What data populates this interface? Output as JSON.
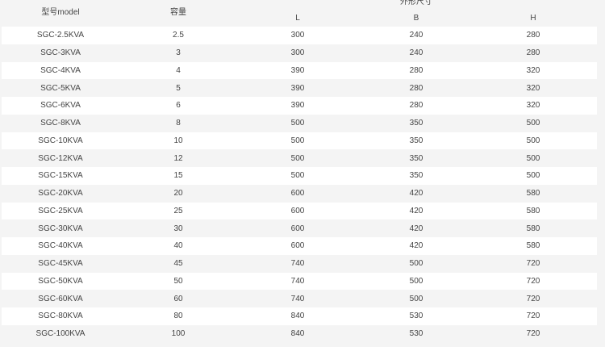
{
  "header": {
    "model": "型号model",
    "capacity": "容量",
    "dimensions": "外形尺寸",
    "L": "L",
    "B": "B",
    "H": "H"
  },
  "rows": [
    [
      "SGC-2.5KVA",
      "2.5",
      "300",
      "240",
      "280"
    ],
    [
      "SGC-3KVA",
      "3",
      "300",
      "240",
      "280"
    ],
    [
      "SGC-4KVA",
      "4",
      "390",
      "280",
      "320"
    ],
    [
      "SGC-5KVA",
      "5",
      "390",
      "280",
      "320"
    ],
    [
      "SGC-6KVA",
      "6",
      "390",
      "280",
      "320"
    ],
    [
      "SGC-8KVA",
      "8",
      "500",
      "350",
      "500"
    ],
    [
      "SGC-10KVA",
      "10",
      "500",
      "350",
      "500"
    ],
    [
      "SGC-12KVA",
      "12",
      "500",
      "350",
      "500"
    ],
    [
      "SGC-15KVA",
      "15",
      "500",
      "350",
      "500"
    ],
    [
      "SGC-20KVA",
      "20",
      "600",
      "420",
      "580"
    ],
    [
      "SGC-25KVA",
      "25",
      "600",
      "420",
      "580"
    ],
    [
      "SGC-30KVA",
      "30",
      "600",
      "420",
      "580"
    ],
    [
      "SGC-40KVA",
      "40",
      "600",
      "420",
      "580"
    ],
    [
      "SGC-45KVA",
      "45",
      "740",
      "500",
      "720"
    ],
    [
      "SGC-50KVA",
      "50",
      "740",
      "500",
      "720"
    ],
    [
      "SGC-60KVA",
      "60",
      "740",
      "500",
      "720"
    ],
    [
      "SGC-80KVA",
      "80",
      "840",
      "530",
      "720"
    ],
    [
      "SGC-100KVA",
      "100",
      "840",
      "530",
      "720"
    ]
  ]
}
